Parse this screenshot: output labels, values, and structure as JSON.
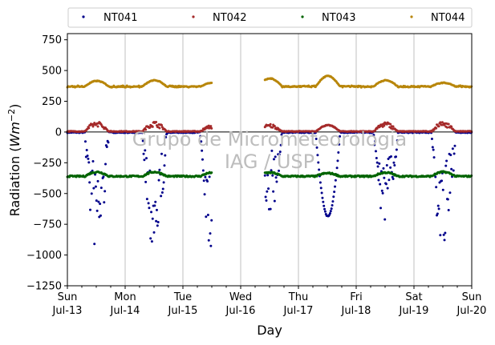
{
  "chart_data": {
    "type": "scatter",
    "watermark": [
      "Grupo de Micrometeorologia",
      "IAG / USP"
    ],
    "xlabel": "Day",
    "ylabel": "Radiation (Wm⁻²)",
    "ylabel_main": "Radiation (",
    "ylabel_unit": "Wm",
    "ylabel_sup": "−2",
    "ylabel_close": ")",
    "ylim": [
      -1250,
      800
    ],
    "xlim": [
      0,
      7
    ],
    "yticks": [
      750,
      500,
      250,
      0,
      -250,
      -500,
      -750,
      -1000,
      -1250
    ],
    "ytick_labels": [
      "750",
      "500",
      "250",
      "0",
      "−250",
      "−500",
      "−750",
      "−1000",
      "−1250"
    ],
    "xtick_labels": [
      {
        "day": "Sun",
        "date": "Jul-13"
      },
      {
        "day": "Mon",
        "date": "Jul-14"
      },
      {
        "day": "Tue",
        "date": "Jul-15"
      },
      {
        "day": "Wed",
        "date": "Jul-16"
      },
      {
        "day": "Thu",
        "date": "Jul-17"
      },
      {
        "day": "Fri",
        "date": "Jul-18"
      },
      {
        "day": "Sat",
        "date": "Jul-19"
      },
      {
        "day": "Sun",
        "date": "Jul-20"
      }
    ],
    "grid": "vertical",
    "legend_position": "top",
    "zero_line": 0,
    "gap": [
      2.5,
      3.42
    ],
    "series": [
      {
        "name": "NT041",
        "color": "#00008b",
        "baseline": -3,
        "daytime_peaks": [
          -880,
          -870,
          -880,
          -600,
          -685,
          -690,
          -895
        ]
      },
      {
        "name": "NT042",
        "color": "#a52a2a",
        "baseline": 5,
        "daytime_peaks": [
          80,
          80,
          55,
          60,
          55,
          75,
          80
        ]
      },
      {
        "name": "NT043",
        "color": "#006400",
        "baseline": -360,
        "daytime_peaks": [
          -325,
          -325,
          -330,
          -330,
          -335,
          -330,
          -325
        ]
      },
      {
        "name": "NT044",
        "color": "#b8860b",
        "baseline": 370,
        "daytime_peaks": [
          415,
          420,
          400,
          435,
          455,
          420,
          400
        ]
      }
    ]
  }
}
